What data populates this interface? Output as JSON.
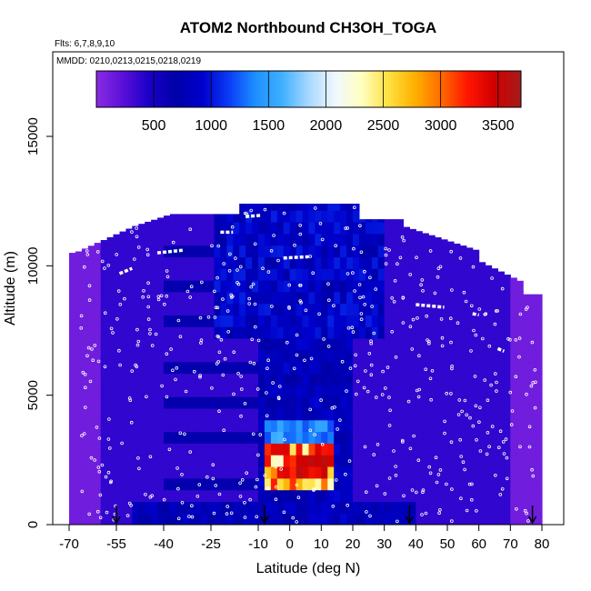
{
  "chart_data": {
    "type": "heatmap",
    "title": "ATOM2 Northbound CH3OH_TOGA",
    "flights_note": "Flts: 6,7,8,9,10",
    "dates_note": "MMDD: 0210,0213,0215,0218,0219",
    "xlabel": "Latitude (deg N)",
    "ylabel": "Altitude (m)",
    "xlim": [
      -70,
      85
    ],
    "ylim": [
      0,
      17500
    ],
    "x_ticks": [
      "-70",
      "-55",
      "-40",
      "-25",
      "-10",
      "0",
      "10",
      "20",
      "30",
      "40",
      "50",
      "60",
      "70",
      "80"
    ],
    "x_tick_values": [
      -70,
      -55,
      -40,
      -25,
      -10,
      0,
      10,
      20,
      30,
      40,
      50,
      60,
      70,
      80
    ],
    "y_ticks": [
      "0",
      "5000",
      "10000",
      "15000"
    ],
    "y_tick_values": [
      0,
      5000,
      10000,
      15000
    ],
    "colorbar": {
      "min": 0,
      "max": 3700,
      "tick_labels": [
        "500",
        "1000",
        "1500",
        "2000",
        "2500",
        "3000",
        "3500"
      ],
      "tick_values": [
        500,
        1000,
        1500,
        2000,
        2500,
        3000,
        3500
      ],
      "colors": [
        "#8a2be2",
        "#5a10d8",
        "#1a00c8",
        "#0000a8",
        "#0000cd",
        "#0a3cf5",
        "#1e90ff",
        "#3fb0ff",
        "#a8d8ff",
        "#f0f8ff",
        "#ffffc0",
        "#ffe040",
        "#ffb000",
        "#ff6a00",
        "#ff1500",
        "#d00000",
        "#a51c1c"
      ]
    },
    "arrow_latitudes": [
      -55,
      -8,
      38,
      77
    ],
    "notable_high_values": [
      {
        "lat_range": [
          -8,
          12
        ],
        "alt_range": [
          1500,
          3000
        ],
        "value": 3200
      }
    ],
    "grid": false,
    "legend_position": "top (horizontal colorbar inside plot)"
  }
}
